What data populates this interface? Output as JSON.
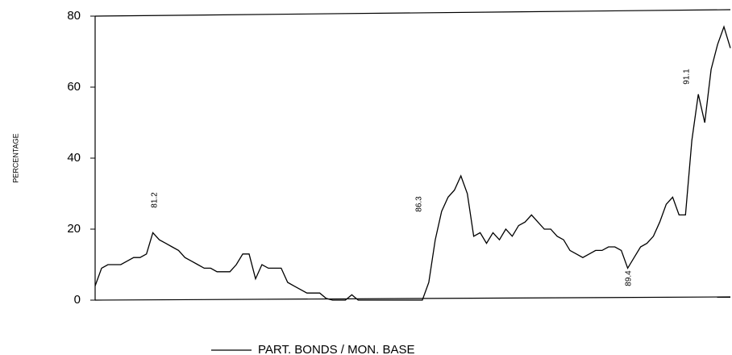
{
  "chart_data": {
    "type": "line",
    "y_label": "PERCENTAGE",
    "ylim": [
      0,
      80
    ],
    "yticks": [
      0,
      20,
      40,
      60,
      80
    ],
    "annotations": [
      "81.2",
      "86.3",
      "89.4",
      "91.1"
    ],
    "series": [
      {
        "name": "PART. BONDS / MON. BASE",
        "color": "#000000",
        "values": [
          4,
          9,
          10,
          10,
          10,
          11,
          12,
          12,
          13,
          19,
          17,
          16,
          15,
          14,
          12,
          11,
          10,
          9,
          9,
          8,
          8,
          8,
          10,
          13,
          13,
          6,
          10,
          9,
          9,
          9,
          5,
          4,
          3,
          2,
          2,
          2,
          0.5,
          0,
          0,
          0,
          1.5,
          0,
          0,
          0,
          0,
          0,
          0,
          0,
          0,
          0,
          0,
          0,
          5,
          17,
          25,
          29,
          31,
          35,
          30,
          18,
          19,
          16,
          19,
          17,
          20,
          18,
          21,
          22,
          24,
          22,
          20,
          20,
          18,
          17,
          14,
          13,
          12,
          13,
          14,
          14,
          15,
          15,
          14,
          9,
          12,
          15,
          16,
          18,
          22,
          27,
          29,
          24,
          24,
          45,
          58,
          50,
          65,
          72,
          77,
          71
        ]
      }
    ]
  }
}
